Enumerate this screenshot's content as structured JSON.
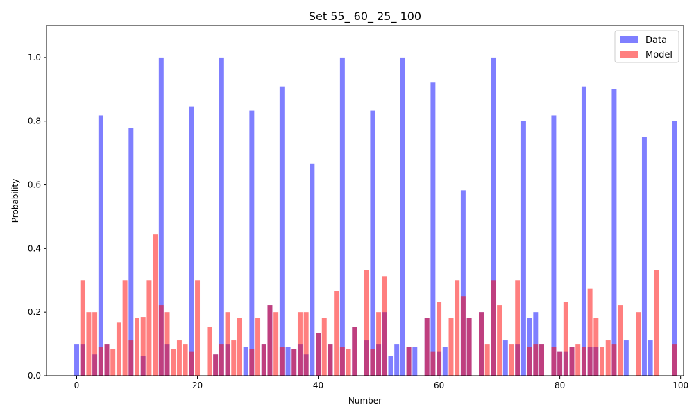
{
  "chart_data": {
    "type": "bar",
    "title": "Set 55_ 60_ 25_ 100",
    "xlabel": "Number",
    "ylabel": "Probability",
    "xlim": [
      -5,
      100.5
    ],
    "ylim": [
      0,
      1.1
    ],
    "xticks": [
      0,
      20,
      40,
      60,
      80,
      100
    ],
    "yticks": [
      0.0,
      0.2,
      0.4,
      0.6,
      0.8,
      1.0
    ],
    "ytick_labels": [
      "0.0",
      "0.2",
      "0.4",
      "0.6",
      "0.8",
      "1.0"
    ],
    "grid": false,
    "legend_position": "top-right",
    "series": [
      {
        "name": "Data",
        "color": "#0000ff",
        "alpha": 0.5,
        "x": [
          0,
          1,
          3,
          4,
          5,
          9,
          11,
          14,
          15,
          19,
          23,
          24,
          25,
          28,
          29,
          31,
          32,
          34,
          35,
          36,
          37,
          38,
          39,
          40,
          42,
          44,
          46,
          48,
          49,
          50,
          51,
          52,
          53,
          54,
          55,
          56,
          58,
          59,
          60,
          61,
          64,
          65,
          67,
          69,
          71,
          73,
          74,
          75,
          76,
          77,
          79,
          80,
          81,
          82,
          84,
          85,
          86,
          89,
          91,
          94,
          95,
          99
        ],
        "values": [
          0.1,
          0.1,
          0.067,
          0.818,
          0.1,
          0.778,
          0.063,
          1.0,
          0.1,
          0.846,
          0.067,
          1.0,
          0.1,
          0.091,
          0.833,
          0.1,
          0.222,
          0.909,
          0.091,
          0.083,
          0.1,
          0.067,
          0.667,
          0.133,
          0.1,
          1.0,
          0.154,
          0.111,
          0.833,
          0.1,
          0.2,
          0.063,
          0.1,
          1.0,
          0.091,
          0.091,
          0.182,
          0.923,
          0.077,
          0.091,
          0.583,
          0.182,
          0.2,
          1.0,
          0.111,
          0.1,
          0.8,
          0.182,
          0.2,
          0.1,
          0.818,
          0.077,
          0.077,
          0.091,
          0.909,
          0.091,
          0.091,
          0.9,
          0.111,
          0.75,
          0.111,
          0.8
        ]
      },
      {
        "name": "Model",
        "color": "#ff0000",
        "alpha": 0.5,
        "x": [
          1,
          2,
          3,
          4,
          5,
          6,
          7,
          8,
          9,
          10,
          11,
          12,
          13,
          14,
          15,
          16,
          17,
          18,
          19,
          20,
          22,
          23,
          24,
          25,
          26,
          27,
          29,
          30,
          31,
          32,
          33,
          34,
          36,
          37,
          38,
          40,
          41,
          42,
          43,
          44,
          45,
          46,
          48,
          49,
          50,
          51,
          55,
          58,
          59,
          60,
          62,
          63,
          64,
          65,
          67,
          68,
          69,
          70,
          72,
          73,
          75,
          76,
          77,
          79,
          80,
          81,
          82,
          83,
          84,
          85,
          86,
          87,
          88,
          89,
          90,
          93,
          96,
          99
        ],
        "values": [
          0.3,
          0.2,
          0.2,
          0.091,
          0.1,
          0.083,
          0.167,
          0.3,
          0.111,
          0.182,
          0.185,
          0.3,
          0.444,
          0.222,
          0.2,
          0.083,
          0.111,
          0.1,
          0.077,
          0.3,
          0.154,
          0.067,
          0.1,
          0.2,
          0.111,
          0.182,
          0.083,
          0.182,
          0.1,
          0.222,
          0.2,
          0.091,
          0.083,
          0.2,
          0.2,
          0.133,
          0.182,
          0.1,
          0.267,
          0.091,
          0.083,
          0.154,
          0.333,
          0.083,
          0.2,
          0.313,
          0.091,
          0.182,
          0.077,
          0.231,
          0.182,
          0.3,
          0.25,
          0.182,
          0.2,
          0.1,
          0.3,
          0.222,
          0.1,
          0.3,
          0.091,
          0.1,
          0.1,
          0.091,
          0.077,
          0.231,
          0.091,
          0.1,
          0.091,
          0.273,
          0.182,
          0.091,
          0.111,
          0.1,
          0.222,
          0.2,
          0.333,
          0.1
        ]
      }
    ]
  }
}
